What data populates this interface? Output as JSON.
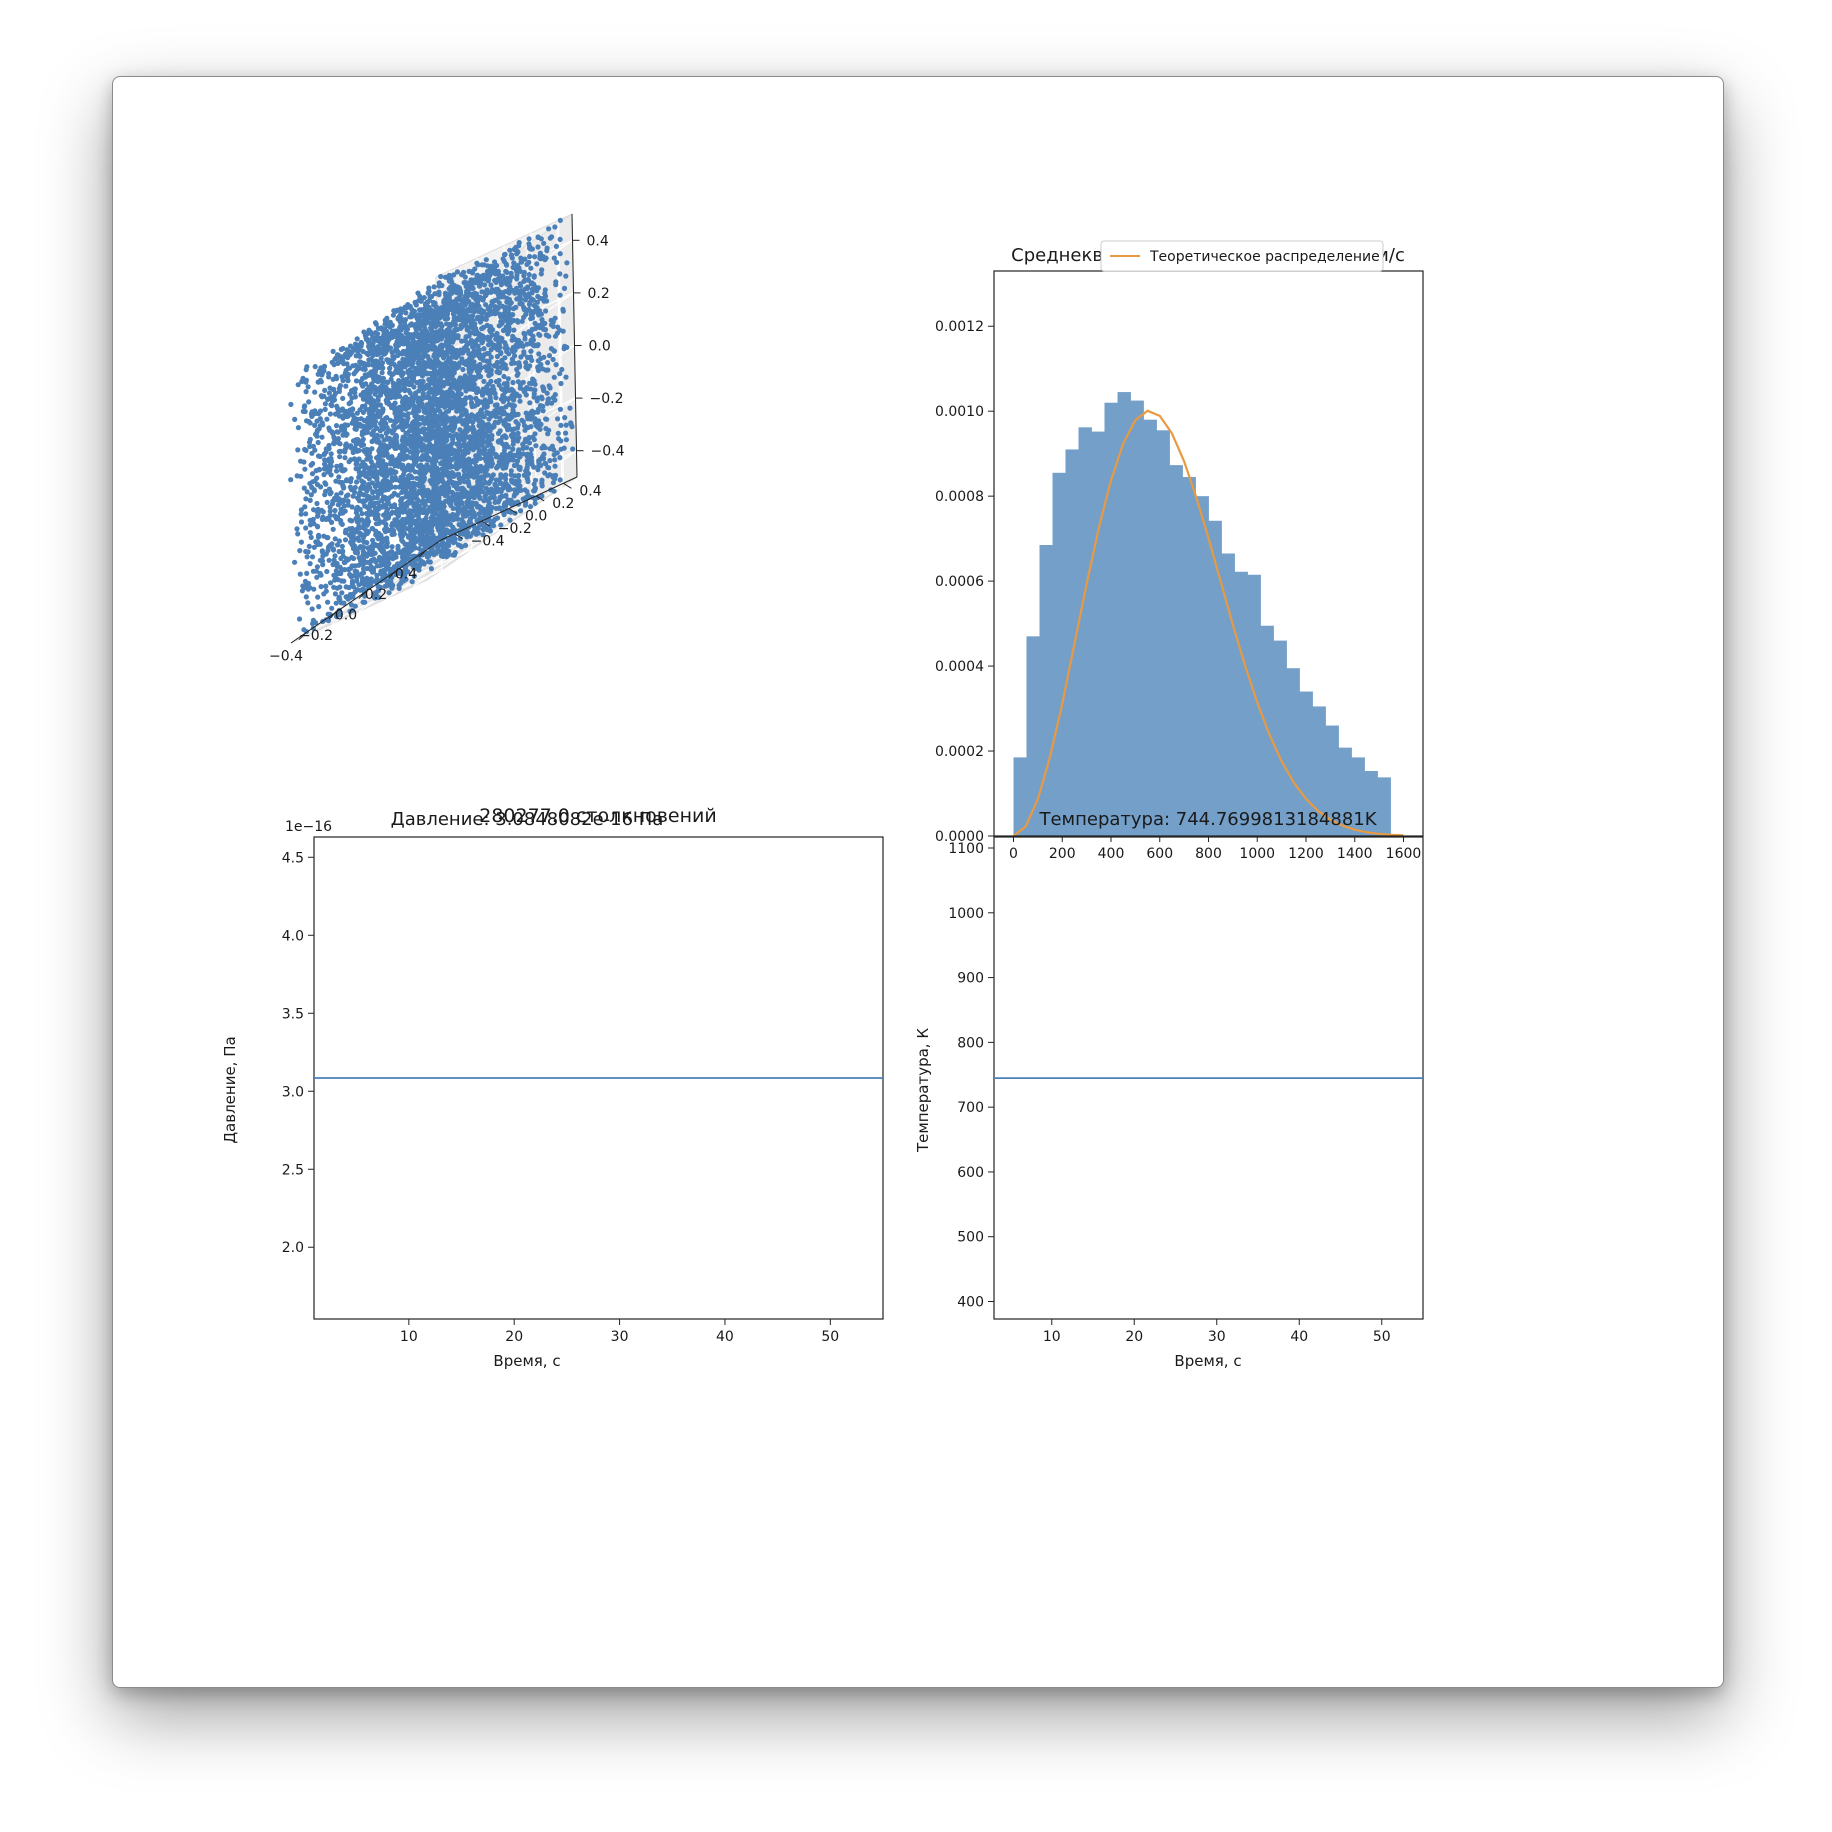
{
  "figure": {
    "background": "#ffffff",
    "accent_blue": "#4a7fb7",
    "hist_fill": "#739fc8",
    "theory_color": "#e89a43"
  },
  "chart_data": [
    {
      "id": "scatter3d",
      "type": "scatter",
      "projection": "3d",
      "caption": "280277.0 столкновений",
      "x_ticks": [
        "−0.4",
        "−0.2",
        "0.0",
        "0.2",
        "0.4"
      ],
      "y_ticks": [
        "−0.4",
        "−0.2",
        "0.0",
        "0.2",
        "0.4"
      ],
      "z_ticks": [
        "−0.4",
        "−0.2",
        "0.0",
        "0.2",
        "0.4"
      ],
      "xlim": [
        -0.5,
        0.5
      ],
      "ylim": [
        -0.5,
        0.5
      ],
      "zlim": [
        -0.5,
        0.5
      ],
      "grid": true,
      "color": "#4a7fb7",
      "distribution": "uniform"
    },
    {
      "id": "speed_hist",
      "type": "bar",
      "title": "Среднеквадратичная скорость: 800.0 м/с",
      "xlim": [
        -80,
        1680
      ],
      "ylim": [
        0,
        0.00133
      ],
      "x_ticks": [
        0,
        200,
        400,
        600,
        800,
        1000,
        1200,
        1400,
        1600
      ],
      "y_ticks": [
        0,
        0.0002,
        0.0004,
        0.0006,
        0.0008,
        0.001,
        0.0012
      ],
      "y_tick_labels": [
        "0.0000",
        "0.0002",
        "0.0004",
        "0.0006",
        "0.0008",
        "0.0010",
        "0.0012"
      ],
      "bin_edges": [
        0,
        53.3,
        106.7,
        160,
        213.3,
        266.7,
        320,
        373.3,
        426.7,
        480,
        533.3,
        586.7,
        640,
        693.3,
        746.7,
        800,
        853.3,
        906.7,
        960,
        1013.3,
        1066.7,
        1120,
        1173.3,
        1226.7,
        1280,
        1333.3,
        1386.7,
        1440,
        1493.3,
        1546.7,
        1600
      ],
      "values": [
        0.000185,
        0.00047,
        0.000685,
        0.000855,
        0.00091,
        0.000962,
        0.000952,
        0.00102,
        0.001045,
        0.001025,
        0.00098,
        0.000955,
        0.000873,
        0.000845,
        0.0008,
        0.000742,
        0.000665,
        0.000622,
        0.000615,
        0.000495,
        0.00046,
        0.000395,
        0.00034,
        0.000305,
        0.00026,
        0.000208,
        0.000185,
        0.000153,
        0.000138,
        0.0
      ],
      "series": [
        {
          "name": "Теоретическое распределение",
          "type": "line",
          "x": [
            0,
            50,
            100,
            150,
            200,
            250,
            300,
            350,
            400,
            450,
            500,
            550,
            600,
            650,
            700,
            750,
            800,
            850,
            900,
            950,
            1000,
            1050,
            1100,
            1150,
            1200,
            1250,
            1300,
            1350,
            1400,
            1450,
            1500,
            1550,
            1600
          ],
          "values": [
            0,
            2.24e-05,
            8.71e-05,
            0.000187,
            0.000312,
            0.000452,
            0.000593,
            0.000725,
            0.000837,
            0.000924,
            0.000979,
            0.001001,
            0.000989,
            0.000948,
            0.000882,
            0.000797,
            0.000701,
            0.000599,
            0.000497,
            0.000401,
            0.000314,
            0.000239,
            0.000176,
            0.000126,
            8.74e-05,
            5.89e-05,
            3.84e-05,
            2.43e-05,
            1.49e-05,
            8.8e-06,
            5.1e-06,
            2.9e-06,
            1.6e-06
          ]
        }
      ],
      "legend": "upper right",
      "grid": false
    },
    {
      "id": "pressure",
      "type": "line",
      "title": "Давление: 3.0848082e-16 Па",
      "xlabel": "Время, с",
      "ylabel": "Давление, Па",
      "offset_label": "1e−16",
      "xlim": [
        1,
        55
      ],
      "ylim": [
        1.54,
        4.63
      ],
      "x_ticks": [
        10,
        20,
        30,
        40,
        50
      ],
      "y_ticks": [
        2.0,
        2.5,
        3.0,
        3.5,
        4.0,
        4.5
      ],
      "y_tick_labels": [
        "2.0",
        "2.5",
        "3.0",
        "3.5",
        "4.0",
        "4.5"
      ],
      "x": [
        1,
        55
      ],
      "values": [
        3.0848082,
        3.0848082
      ],
      "grid": false
    },
    {
      "id": "temperature",
      "type": "line",
      "title": "Температура: 744.7699813184881K",
      "xlabel": "Время, с",
      "ylabel": "Температура, К",
      "xlim": [
        3,
        55
      ],
      "ylim": [
        373,
        1117
      ],
      "x_ticks": [
        10,
        20,
        30,
        40,
        50
      ],
      "y_ticks": [
        400,
        500,
        600,
        700,
        800,
        900,
        1000,
        1100
      ],
      "y_tick_labels": [
        "400",
        "500",
        "600",
        "700",
        "800",
        "900",
        "1000",
        "1100"
      ],
      "x": [
        3,
        55
      ],
      "values": [
        744.7699813184881,
        744.7699813184881
      ],
      "grid": false
    }
  ]
}
